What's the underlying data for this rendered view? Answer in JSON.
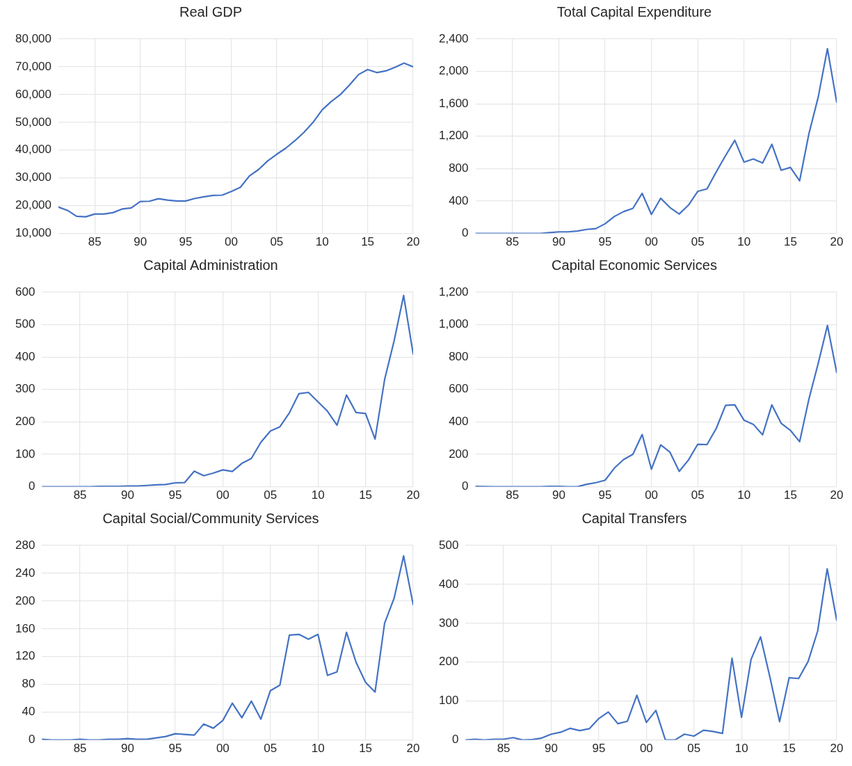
{
  "chart_data": [
    {
      "type": "line",
      "title": "Real GDP",
      "x": [
        1981,
        1982,
        1983,
        1984,
        1985,
        1986,
        1987,
        1988,
        1989,
        1990,
        1991,
        1992,
        1993,
        1994,
        1995,
        1996,
        1997,
        1998,
        1999,
        2000,
        2001,
        2002,
        2003,
        2004,
        2005,
        2006,
        2007,
        2008,
        2009,
        2010,
        2011,
        2012,
        2013,
        2014,
        2015,
        2016,
        2017,
        2018,
        2019,
        2020
      ],
      "series": [
        {
          "color": "#4472c4",
          "values": [
            19500,
            18300,
            16200,
            16000,
            17000,
            17000,
            17500,
            18800,
            19200,
            21500,
            21600,
            22500,
            22000,
            21700,
            21700,
            22600,
            23200,
            23700,
            23800,
            25100,
            26600,
            30700,
            33000,
            36100,
            38500,
            40700,
            43400,
            46400,
            50000,
            54500,
            57500,
            60000,
            63400,
            67200,
            69000,
            67900,
            68500,
            69800,
            71300,
            70000
          ]
        }
      ],
      "xlim": [
        1981,
        2020
      ],
      "xticks": [
        {
          "value": 1985,
          "label": "85"
        },
        {
          "value": 1990,
          "label": "90"
        },
        {
          "value": 1995,
          "label": "95"
        },
        {
          "value": 2000,
          "label": "00"
        },
        {
          "value": 2005,
          "label": "05"
        },
        {
          "value": 2010,
          "label": "10"
        },
        {
          "value": 2015,
          "label": "15"
        },
        {
          "value": 2020,
          "label": "20"
        }
      ],
      "ylim": [
        10000,
        80000
      ],
      "yticks": [
        {
          "value": 10000,
          "label": "10,000"
        },
        {
          "value": 20000,
          "label": "20,000"
        },
        {
          "value": 30000,
          "label": "30,000"
        },
        {
          "value": 40000,
          "label": "40,000"
        },
        {
          "value": 50000,
          "label": "50,000"
        },
        {
          "value": 60000,
          "label": "60,000"
        },
        {
          "value": 70000,
          "label": "70,000"
        },
        {
          "value": 80000,
          "label": "80,000"
        }
      ],
      "grid": true,
      "marker": "none",
      "line_style": "solid"
    },
    {
      "type": "line",
      "title": "Total Capital Expenditure",
      "x": [
        1981,
        1982,
        1983,
        1984,
        1985,
        1986,
        1987,
        1988,
        1989,
        1990,
        1991,
        1992,
        1993,
        1994,
        1995,
        1996,
        1997,
        1998,
        1999,
        2000,
        2001,
        2002,
        2003,
        2004,
        2005,
        2006,
        2007,
        2008,
        2009,
        2010,
        2011,
        2012,
        2013,
        2014,
        2015,
        2016,
        2017,
        2018,
        2019,
        2020
      ],
      "series": [
        {
          "color": "#4472c4",
          "values": [
            0,
            0,
            0,
            0,
            0,
            0,
            0,
            0,
            10,
            20,
            20,
            30,
            50,
            60,
            120,
            210,
            270,
            310,
            495,
            235,
            435,
            320,
            240,
            350,
            520,
            550,
            760,
            960,
            1150,
            880,
            920,
            870,
            1100,
            780,
            815,
            650,
            1230,
            1680,
            2280,
            1620
          ]
        }
      ],
      "xlim": [
        1981,
        2020
      ],
      "xticks": [
        {
          "value": 1985,
          "label": "85"
        },
        {
          "value": 1990,
          "label": "90"
        },
        {
          "value": 1995,
          "label": "95"
        },
        {
          "value": 2000,
          "label": "00"
        },
        {
          "value": 2005,
          "label": "05"
        },
        {
          "value": 2010,
          "label": "10"
        },
        {
          "value": 2015,
          "label": "15"
        },
        {
          "value": 2020,
          "label": "20"
        }
      ],
      "ylim": [
        0,
        2400
      ],
      "yticks": [
        0,
        400,
        800,
        {
          "value": 1200,
          "label": "1,200"
        },
        {
          "value": 1600,
          "label": "1,600"
        },
        {
          "value": 2000,
          "label": "2,000"
        },
        {
          "value": 2400,
          "label": "2,400"
        }
      ],
      "grid": true,
      "marker": "none",
      "line_style": "solid"
    },
    {
      "type": "line",
      "title": "Capital Administration",
      "x": [
        1981,
        1982,
        1983,
        1984,
        1985,
        1986,
        1987,
        1988,
        1989,
        1990,
        1991,
        1992,
        1993,
        1994,
        1995,
        1996,
        1997,
        1998,
        1999,
        2000,
        2001,
        2002,
        2003,
        2004,
        2005,
        2006,
        2007,
        2008,
        2009,
        2010,
        2011,
        2012,
        2013,
        2014,
        2015,
        2016,
        2017,
        2018,
        2019,
        2020
      ],
      "series": [
        {
          "color": "#4472c4",
          "values": [
            0,
            0,
            0,
            0,
            0,
            0,
            1,
            1,
            1,
            2,
            2,
            4,
            6,
            7,
            12,
            13,
            48,
            34,
            42,
            52,
            47,
            72,
            87,
            137,
            172,
            185,
            228,
            287,
            291,
            262,
            233,
            190,
            283,
            229,
            226,
            147,
            330,
            450,
            590,
            410
          ]
        }
      ],
      "xlim": [
        1981,
        2020
      ],
      "xticks": [
        {
          "value": 1985,
          "label": "85"
        },
        {
          "value": 1990,
          "label": "90"
        },
        {
          "value": 1995,
          "label": "95"
        },
        {
          "value": 2000,
          "label": "00"
        },
        {
          "value": 2005,
          "label": "05"
        },
        {
          "value": 2010,
          "label": "10"
        },
        {
          "value": 2015,
          "label": "15"
        },
        {
          "value": 2020,
          "label": "20"
        }
      ],
      "ylim": [
        0,
        600
      ],
      "yticks": [
        0,
        100,
        200,
        300,
        400,
        500,
        600
      ],
      "grid": true,
      "marker": "none",
      "line_style": "solid"
    },
    {
      "type": "line",
      "title": "Capital Economic Services",
      "x": [
        1981,
        1982,
        1983,
        1984,
        1985,
        1986,
        1987,
        1988,
        1989,
        1990,
        1991,
        1992,
        1993,
        1994,
        1995,
        1996,
        1997,
        1998,
        1999,
        2000,
        2001,
        2002,
        2003,
        2004,
        2005,
        2006,
        2007,
        2008,
        2009,
        2010,
        2011,
        2012,
        2013,
        2014,
        2015,
        2016,
        2017,
        2018,
        2019,
        2020
      ],
      "series": [
        {
          "color": "#4472c4",
          "values": [
            2,
            1,
            0,
            0,
            0,
            0,
            0,
            0,
            2,
            2,
            0,
            0,
            15,
            25,
            40,
            115,
            168,
            200,
            322,
            108,
            258,
            213,
            95,
            165,
            262,
            260,
            360,
            502,
            505,
            410,
            385,
            320,
            505,
            392,
            348,
            278,
            540,
            760,
            995,
            705
          ]
        }
      ],
      "xlim": [
        1981,
        2020
      ],
      "xticks": [
        {
          "value": 1985,
          "label": "85"
        },
        {
          "value": 1990,
          "label": "90"
        },
        {
          "value": 1995,
          "label": "95"
        },
        {
          "value": 2000,
          "label": "00"
        },
        {
          "value": 2005,
          "label": "05"
        },
        {
          "value": 2010,
          "label": "10"
        },
        {
          "value": 2015,
          "label": "15"
        },
        {
          "value": 2020,
          "label": "20"
        }
      ],
      "ylim": [
        0,
        1200
      ],
      "yticks": [
        0,
        200,
        400,
        600,
        800,
        {
          "value": 1000,
          "label": "1,000"
        },
        {
          "value": 1200,
          "label": "1,200"
        }
      ],
      "grid": true,
      "marker": "none",
      "line_style": "solid"
    },
    {
      "type": "line",
      "title": "Capital Social/Community Services",
      "x": [
        1981,
        1982,
        1983,
        1984,
        1985,
        1986,
        1987,
        1988,
        1989,
        1990,
        1991,
        1992,
        1993,
        1994,
        1995,
        1996,
        1997,
        1998,
        1999,
        2000,
        2001,
        2002,
        2003,
        2004,
        2005,
        2006,
        2007,
        2008,
        2009,
        2010,
        2011,
        2012,
        2013,
        2014,
        2015,
        2016,
        2017,
        2018,
        2019,
        2020
      ],
      "series": [
        {
          "color": "#4472c4",
          "values": [
            1,
            0,
            0,
            0,
            1,
            0,
            0,
            1,
            1,
            2,
            1,
            1,
            3,
            5,
            9,
            8,
            7,
            23,
            17,
            28,
            53,
            32,
            56,
            30,
            71,
            79,
            151,
            152,
            145,
            152,
            93,
            98,
            155,
            112,
            83,
            69,
            168,
            204,
            265,
            195
          ]
        }
      ],
      "xlim": [
        1981,
        2020
      ],
      "xticks": [
        {
          "value": 1985,
          "label": "85"
        },
        {
          "value": 1990,
          "label": "90"
        },
        {
          "value": 1995,
          "label": "95"
        },
        {
          "value": 2000,
          "label": "00"
        },
        {
          "value": 2005,
          "label": "05"
        },
        {
          "value": 2010,
          "label": "10"
        },
        {
          "value": 2015,
          "label": "15"
        },
        {
          "value": 2020,
          "label": "20"
        }
      ],
      "ylim": [
        0,
        280
      ],
      "yticks": [
        0,
        40,
        80,
        120,
        160,
        200,
        240,
        280
      ],
      "grid": true,
      "marker": "none",
      "line_style": "solid"
    },
    {
      "type": "line",
      "title": "Capital Transfers",
      "x": [
        1981,
        1982,
        1983,
        1984,
        1985,
        1986,
        1987,
        1988,
        1989,
        1990,
        1991,
        1992,
        1993,
        1994,
        1995,
        1996,
        1997,
        1998,
        1999,
        2000,
        2001,
        2002,
        2003,
        2004,
        2005,
        2006,
        2007,
        2008,
        2009,
        2010,
        2011,
        2012,
        2013,
        2014,
        2015,
        2016,
        2017,
        2018,
        2019,
        2020
      ],
      "series": [
        {
          "color": "#4472c4",
          "values": [
            0,
            2,
            0,
            2,
            2,
            6,
            0,
            1,
            5,
            15,
            20,
            30,
            24,
            29,
            55,
            72,
            42,
            48,
            115,
            45,
            76,
            0,
            0,
            15,
            10,
            25,
            22,
            17,
            210,
            58,
            207,
            265,
            160,
            47,
            160,
            158,
            202,
            280,
            440,
            308
          ]
        }
      ],
      "xlim": [
        1981,
        2020
      ],
      "xticks": [
        {
          "value": 1985,
          "label": "85"
        },
        {
          "value": 1990,
          "label": "90"
        },
        {
          "value": 1995,
          "label": "95"
        },
        {
          "value": 2000,
          "label": "00"
        },
        {
          "value": 2005,
          "label": "05"
        },
        {
          "value": 2010,
          "label": "10"
        },
        {
          "value": 2015,
          "label": "15"
        },
        {
          "value": 2020,
          "label": "20"
        }
      ],
      "ylim": [
        0,
        500
      ],
      "yticks": [
        0,
        100,
        200,
        300,
        400,
        500
      ],
      "grid": true,
      "marker": "none",
      "line_style": "solid"
    }
  ]
}
